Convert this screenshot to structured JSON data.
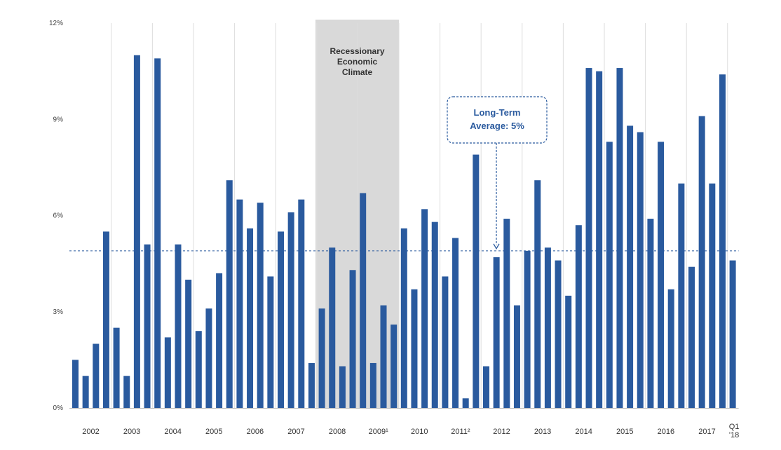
{
  "chart_data": {
    "type": "bar",
    "title": "",
    "xlabel": "",
    "ylabel": "",
    "ylim": [
      0,
      12
    ],
    "y_ticks": [
      {
        "value": 0,
        "label": "0%"
      },
      {
        "value": 3,
        "label": "3%"
      },
      {
        "value": 6,
        "label": "6%"
      },
      {
        "value": 9,
        "label": "9%"
      },
      {
        "value": 12,
        "label": "12%"
      }
    ],
    "grid": "vertical lines at year boundaries",
    "bar_color": "#2a5a9e",
    "years": [
      {
        "label": "2002",
        "quarters": 4
      },
      {
        "label": "2003",
        "quarters": 4
      },
      {
        "label": "2004",
        "quarters": 4
      },
      {
        "label": "2005",
        "quarters": 4
      },
      {
        "label": "2006",
        "quarters": 4
      },
      {
        "label": "2007",
        "quarters": 4
      },
      {
        "label": "2008",
        "quarters": 4
      },
      {
        "label": "2009¹",
        "quarters": 4
      },
      {
        "label": "2010",
        "quarters": 4
      },
      {
        "label": "2011²",
        "quarters": 4
      },
      {
        "label": "2012",
        "quarters": 4
      },
      {
        "label": "2013",
        "quarters": 4
      },
      {
        "label": "2014",
        "quarters": 4
      },
      {
        "label": "2015",
        "quarters": 4
      },
      {
        "label": "2016",
        "quarters": 4
      },
      {
        "label": "2017",
        "quarters": 4
      },
      {
        "label": "Q1 '18",
        "label_lines": [
          "Q1",
          "'18"
        ],
        "quarters": 1
      }
    ],
    "values": [
      1.5,
      1.0,
      2.0,
      5.5,
      2.5,
      1.0,
      11.0,
      5.1,
      10.9,
      2.2,
      5.1,
      4.0,
      2.4,
      3.1,
      4.2,
      7.1,
      6.5,
      5.6,
      6.4,
      4.1,
      5.5,
      6.1,
      6.5,
      1.4,
      3.1,
      5.0,
      1.3,
      4.3,
      6.7,
      1.4,
      3.2,
      2.6,
      5.6,
      3.7,
      6.2,
      5.8,
      4.1,
      5.3,
      0.3,
      7.9,
      1.3,
      4.7,
      5.9,
      3.2,
      4.9,
      7.1,
      5.0,
      4.6,
      3.5,
      5.7,
      10.6,
      10.5,
      8.3,
      10.6,
      8.8,
      8.6,
      5.9,
      8.3,
      3.7,
      7.0,
      4.4,
      9.1,
      7.0,
      10.4,
      4.6
    ],
    "average": {
      "value": 4.9,
      "label_lines": [
        "Long-Term",
        "Average: 5%"
      ],
      "color": "#2a5a9e"
    },
    "recession": {
      "start_index": 23,
      "end_index": 31,
      "label_lines": [
        "Recessionary",
        "Economic",
        "Climate"
      ],
      "color": "#d9d9d9"
    }
  }
}
